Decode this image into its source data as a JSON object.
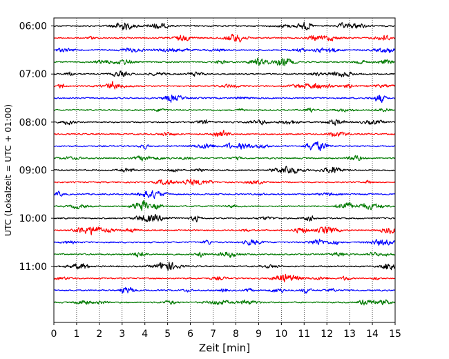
{
  "chart_data": {
    "type": "line",
    "xlabel": "Zeit  [min]",
    "ylabel": "UTC (Lokalzeit = UTC + 01:00)",
    "xlim": [
      0,
      15
    ],
    "x_ticks": [
      0,
      1,
      2,
      3,
      4,
      5,
      6,
      7,
      8,
      9,
      10,
      11,
      12,
      13,
      14,
      15
    ],
    "x_tick_labels": [
      "0",
      "1",
      "2",
      "3",
      "4",
      "5",
      "6",
      "7",
      "8",
      "9",
      "10",
      "11",
      "12",
      "13",
      "14",
      "15"
    ],
    "ylim": [
      "05:50",
      "12:10"
    ],
    "y_tick_labels": [
      "06:00",
      "07:00",
      "08:00",
      "09:00",
      "10:00",
      "11:00"
    ],
    "grid": {
      "x": "dotted vertical lines at each minute",
      "y": false
    },
    "trace_interval_minutes": 15,
    "trace_start_times": [
      "06:00",
      "06:15",
      "06:30",
      "06:45",
      "07:00",
      "07:15",
      "07:30",
      "07:45",
      "08:00",
      "08:15",
      "08:30",
      "08:45",
      "09:00",
      "09:15",
      "09:30",
      "09:45",
      "10:00",
      "10:15",
      "10:30",
      "10:45",
      "11:00",
      "11:15",
      "11:30",
      "11:45"
    ],
    "trace_colors": [
      "#000000",
      "#ff0000",
      "#0000ff",
      "#007a00"
    ],
    "description_type": "helicorder (seismogram traces, one per 15-minute interval)"
  }
}
